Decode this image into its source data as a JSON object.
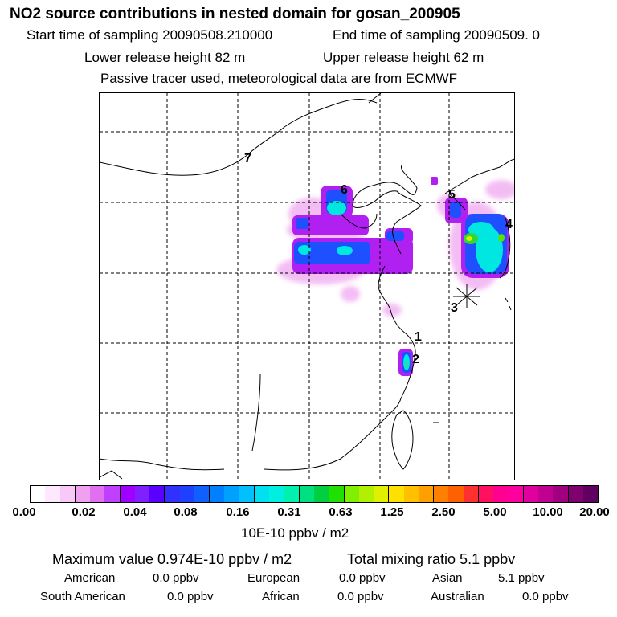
{
  "title": "NO2 source contributions in nested domain for gosan_200905",
  "header": {
    "start_time": "Start time of sampling 20090508.210000",
    "end_time": "End time of sampling 20090509.     0",
    "lower_height": "Lower release height   82 m",
    "upper_height": "Upper release height   62 m",
    "tracer_note": "Passive tracer used, meteorological data are from ECMWF"
  },
  "map": {
    "point_labels": [
      "1",
      "2",
      "3",
      "4",
      "5",
      "6",
      "7"
    ]
  },
  "colorbar": {
    "tick_labels": [
      "0.00",
      "0.02",
      "0.04",
      "0.08",
      "0.16",
      "0.31",
      "0.63",
      "1.25",
      "2.50",
      "5.00",
      "10.00",
      "20.00"
    ],
    "units": "10E-10 ppbv / m2",
    "colors": [
      "#ffffff",
      "#fde8fd",
      "#f8c8f8",
      "#f0a0f0",
      "#e070f0",
      "#c040ff",
      "#a000ff",
      "#8020ff",
      "#5a00ff",
      "#3030ff",
      "#2040ff",
      "#1060ff",
      "#0080ff",
      "#00a0ff",
      "#00c0ff",
      "#00e0f0",
      "#00f0e0",
      "#00f0b0",
      "#00e080",
      "#00d040",
      "#20e000",
      "#80f000",
      "#b0f000",
      "#e0f000",
      "#ffe000",
      "#ffc000",
      "#ffa000",
      "#ff8000",
      "#ff6000",
      "#ff3030",
      "#ff1060",
      "#ff0090",
      "#ff00a0",
      "#e000a0",
      "#c00090",
      "#a00080",
      "#800070",
      "#600060"
    ]
  },
  "stats": {
    "max_value": "Maximum value  0.974E-10 ppbv / m2",
    "total_mixing": "Total mixing ratio       5.1 ppbv",
    "american_label": "American",
    "american_value": "0.0 ppbv",
    "european_label": "European",
    "european_value": "0.0 ppbv",
    "asian_label": "Asian",
    "asian_value": "5.1 ppbv",
    "south_american_label": "South American",
    "south_american_value": "0.0 ppbv",
    "african_label": "African",
    "african_value": "0.0 ppbv",
    "australian_label": "Australian",
    "australian_value": "0.0 ppbv"
  }
}
